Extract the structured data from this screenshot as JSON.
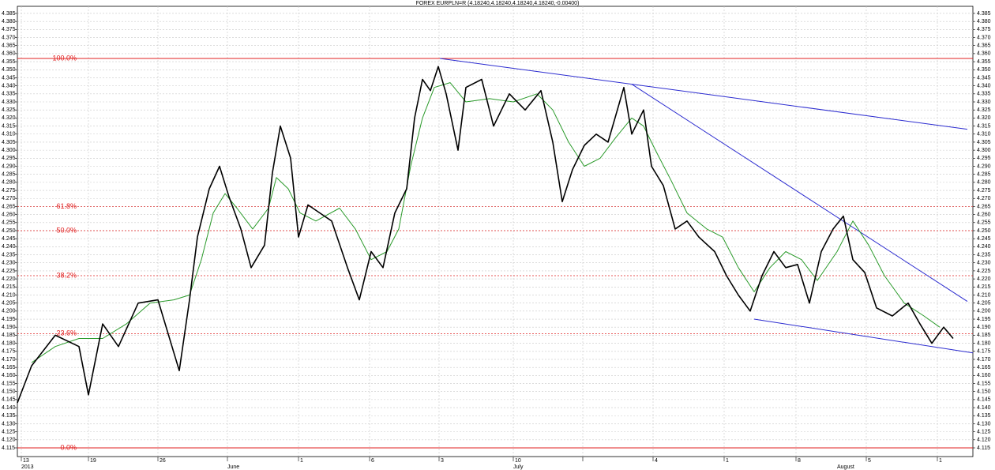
{
  "chart_data": {
    "type": "line",
    "title": "FOREX EURPLN=R (4.18240,4.18240,4.18240,4.18240,-0.00400)",
    "xlim": [
      0,
      1210
    ],
    "ylim": [
      4.1096,
      4.3894
    ],
    "grid": true,
    "xticks": [
      {
        "value": 5,
        "label": "13"
      },
      {
        "value": 90,
        "label": "19"
      },
      {
        "value": 178,
        "label": "26"
      },
      {
        "value": 266,
        "label": null
      },
      {
        "value": 356,
        "label": "1"
      },
      {
        "value": 446,
        "label": "6"
      },
      {
        "value": 534,
        "label": "3"
      },
      {
        "value": 628,
        "label": "10"
      },
      {
        "value": 716,
        "label": null
      },
      {
        "value": 805,
        "label": "4"
      },
      {
        "value": 895,
        "label": "1"
      },
      {
        "value": 986,
        "label": "8"
      },
      {
        "value": 1075,
        "label": "5"
      },
      {
        "value": 1165,
        "label": "1"
      }
    ],
    "month_labels": [
      {
        "value": 5,
        "label": "2013"
      },
      {
        "value": 266,
        "label": "June"
      },
      {
        "value": 628,
        "label": "July"
      },
      {
        "value": 1038,
        "label": "August"
      }
    ],
    "yticks": [
      4.115,
      {
        "value": 4.12,
        "label": "4.120"
      },
      4.125,
      {
        "value": 4.13,
        "label": "4.130"
      },
      4.135,
      {
        "value": 4.14,
        "label": "4.140"
      },
      4.145,
      {
        "value": 4.15,
        "label": "4.150"
      },
      4.155,
      {
        "value": 4.16,
        "label": "4.160"
      },
      4.165,
      {
        "value": 4.17,
        "label": "4.170"
      },
      4.175,
      {
        "value": 4.18,
        "label": "4.180"
      },
      4.185,
      {
        "value": 4.19,
        "label": "4.190"
      },
      4.195,
      {
        "value": 4.2,
        "label": "4.200"
      },
      4.205,
      {
        "value": 4.21,
        "label": "4.210"
      },
      4.215,
      {
        "value": 4.22,
        "label": "4.220"
      },
      4.225,
      {
        "value": 4.23,
        "label": "4.230"
      },
      4.235,
      {
        "value": 4.24,
        "label": "4.240"
      },
      4.245,
      {
        "value": 4.25,
        "label": "4.250"
      },
      4.255,
      {
        "value": 4.26,
        "label": "4.260"
      },
      4.265,
      {
        "value": 4.27,
        "label": "4.270"
      },
      4.275,
      {
        "value": 4.28,
        "label": "4.280"
      },
      4.285,
      {
        "value": 4.29,
        "label": "4.290"
      },
      4.295,
      {
        "value": 4.3,
        "label": "4.300"
      },
      4.305,
      {
        "value": 4.31,
        "label": "4.310"
      },
      4.315,
      {
        "value": 4.32,
        "label": "4.320"
      },
      4.325,
      {
        "value": 4.33,
        "label": "4.330"
      },
      4.335,
      {
        "value": 4.34,
        "label": "4.340"
      },
      4.345,
      {
        "value": 4.35,
        "label": "4.350"
      },
      4.355,
      {
        "value": 4.36,
        "label": "4.360"
      },
      4.365,
      {
        "value": 4.37,
        "label": "4.370"
      },
      4.375,
      {
        "value": 4.38,
        "label": "4.380"
      },
      4.385
    ],
    "series": [
      {
        "color": "#000000",
        "x": [
          0,
          18,
          48,
          78,
          90,
          108,
          128,
          153,
          178,
          205,
          218,
          228,
          243,
          256,
          268,
          283,
          296,
          313,
          323,
          333,
          346,
          356,
          368,
          383,
          398,
          418,
          433,
          448,
          463,
          478,
          493,
          503,
          513,
          523,
          533,
          543,
          558,
          568,
          588,
          603,
          623,
          643,
          663,
          678,
          690,
          703,
          718,
          733,
          748,
          768,
          778,
          793,
          803,
          818,
          833,
          848,
          863,
          883,
          898,
          913,
          928,
          943,
          958,
          973,
          988,
          1003,
          1018,
          1033,
          1046,
          1058,
          1073,
          1088,
          1108,
          1128,
          1143,
          1158,
          1173,
          1185
        ],
        "values": [
          4.143,
          4.166,
          4.185,
          4.178,
          4.148,
          4.192,
          4.178,
          4.205,
          4.207,
          4.163,
          4.207,
          4.246,
          4.276,
          4.29,
          4.271,
          4.251,
          4.227,
          4.241,
          4.286,
          4.315,
          4.295,
          4.246,
          4.266,
          4.261,
          4.256,
          4.227,
          4.207,
          4.237,
          4.227,
          4.261,
          4.276,
          4.32,
          4.344,
          4.337,
          4.352,
          4.335,
          4.3,
          4.339,
          4.344,
          4.315,
          4.335,
          4.325,
          4.337,
          4.305,
          4.268,
          4.288,
          4.303,
          4.31,
          4.305,
          4.339,
          4.31,
          4.325,
          4.29,
          4.278,
          4.251,
          4.256,
          4.246,
          4.237,
          4.222,
          4.21,
          4.2,
          4.222,
          4.237,
          4.227,
          4.229,
          4.205,
          4.237,
          4.251,
          4.259,
          4.232,
          4.224,
          4.202,
          4.197,
          4.205,
          4.192,
          4.18,
          4.19,
          4.183
        ]
      },
      {
        "color": "#2a9a2a",
        "x": [
          18,
          48,
          78,
          108,
          138,
          168,
          198,
          218,
          233,
          248,
          263,
          278,
          298,
          318,
          328,
          343,
          358,
          378,
          408,
          428,
          448,
          468,
          483,
          498,
          513,
          528,
          548,
          568,
          598,
          628,
          658,
          678,
          698,
          718,
          738,
          758,
          778,
          793,
          808,
          828,
          848,
          873,
          893,
          913,
          933,
          953,
          973,
          993,
          1013,
          1038,
          1058,
          1078,
          1098,
          1123,
          1148,
          1168
        ],
        "values": [
          4.168,
          4.178,
          4.183,
          4.183,
          4.192,
          4.205,
          4.207,
          4.21,
          4.232,
          4.261,
          4.273,
          4.264,
          4.251,
          4.264,
          4.283,
          4.276,
          4.261,
          4.256,
          4.264,
          4.251,
          4.232,
          4.237,
          4.251,
          4.29,
          4.32,
          4.339,
          4.342,
          4.33,
          4.332,
          4.33,
          4.335,
          4.325,
          4.305,
          4.29,
          4.295,
          4.308,
          4.32,
          4.315,
          4.3,
          4.281,
          4.261,
          4.251,
          4.246,
          4.227,
          4.212,
          4.227,
          4.237,
          4.232,
          4.219,
          4.237,
          4.256,
          4.241,
          4.222,
          4.205,
          4.197,
          4.19
        ]
      }
    ],
    "fib_color": "#e02020",
    "fib_levels": [
      {
        "label": "100.0%",
        "value": 4.357
      },
      {
        "label": "61.8%",
        "value": 4.265
      },
      {
        "label": "50.0%",
        "value": 4.25
      },
      {
        "label": "38.2%",
        "value": 4.222
      },
      {
        "label": "23.6%",
        "value": 4.186
      },
      {
        "label": "0.0%",
        "value": 4.115
      }
    ],
    "trend_color": "#2c2cd0",
    "trendlines": [
      {
        "x": [
          535,
          1203
        ],
        "values": [
          4.357,
          4.313
        ]
      },
      {
        "x": [
          778,
          1203
        ],
        "values": [
          4.341,
          4.206
        ]
      },
      {
        "x": [
          933,
          1210
        ],
        "values": [
          4.195,
          4.174
        ]
      }
    ]
  }
}
